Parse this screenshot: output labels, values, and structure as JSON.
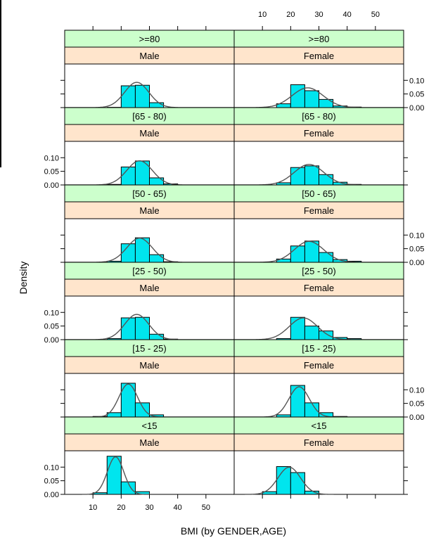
{
  "chart_data": {
    "type": "bar",
    "xlabel": "BMI (by GENDER,AGE)",
    "ylabel": "Density",
    "xlim": [
      0,
      60
    ],
    "ylim": [
      0,
      0.16
    ],
    "x_ticks": [
      10,
      20,
      30,
      40,
      50
    ],
    "x_tick_labels": [
      "10",
      "20",
      "30",
      "40",
      "50"
    ],
    "y_ticks": [
      0,
      0.05,
      0.1
    ],
    "y_tick_labels": [
      "0.00",
      "0.05",
      "0.10"
    ],
    "bin_edges": [
      5,
      10,
      15,
      20,
      25,
      30,
      35,
      40,
      45,
      50,
      55
    ],
    "colors": {
      "bar_fill": "#00e5ee",
      "bar_stroke": "#000000",
      "curve": "#555555",
      "age_strip": "#ccffcc",
      "gender_strip": "#ffe5cc"
    },
    "columns": [
      "Male",
      "Female"
    ],
    "rows": [
      ">=80",
      "[65 - 80)",
      "[50 - 65)",
      "[25 - 50)",
      "[15 - 25)",
      "<15"
    ],
    "panels": [
      [
        {
          "age": ">=80",
          "gender": "Male",
          "density": [
            0,
            0,
            0.001,
            0.08,
            0.082,
            0.018,
            0,
            0,
            0,
            0
          ],
          "curve": {
            "mean": 25.5,
            "sd": 4.3
          }
        },
        {
          "age": ">=80",
          "gender": "Female",
          "density": [
            0,
            0,
            0.014,
            0.084,
            0.062,
            0.03,
            0.006,
            0.002,
            0,
            0
          ],
          "curve": {
            "mean": 26.0,
            "sd": 5.5
          }
        }
      ],
      [
        {
          "age": "[65 - 80)",
          "gender": "Male",
          "density": [
            0,
            0,
            0.002,
            0.066,
            0.088,
            0.026,
            0.004,
            0,
            0,
            0
          ],
          "curve": {
            "mean": 26.5,
            "sd": 4.5
          }
        },
        {
          "age": "[65 - 80)",
          "gender": "Female",
          "density": [
            0,
            0,
            0.008,
            0.064,
            0.07,
            0.038,
            0.01,
            0.002,
            0,
            0
          ],
          "curve": {
            "mean": 26.5,
            "sd": 5.3
          }
        }
      ],
      [
        {
          "age": "[50 - 65)",
          "gender": "Male",
          "density": [
            0,
            0,
            0.004,
            0.068,
            0.09,
            0.028,
            0.002,
            0,
            0,
            0
          ],
          "curve": {
            "mean": 26.5,
            "sd": 4.5
          }
        },
        {
          "age": "[50 - 65)",
          "gender": "Female",
          "density": [
            0,
            0,
            0.012,
            0.06,
            0.078,
            0.036,
            0.01,
            0.004,
            0,
            0
          ],
          "curve": {
            "mean": 26.5,
            "sd": 5.2
          }
        }
      ],
      [
        {
          "age": "[25 - 50)",
          "gender": "Male",
          "density": [
            0,
            0,
            0.004,
            0.08,
            0.082,
            0.02,
            0.002,
            0,
            0,
            0
          ],
          "curve": {
            "mean": 25.5,
            "sd": 4.3
          }
        },
        {
          "age": "[25 - 50)",
          "gender": "Female",
          "density": [
            0,
            0,
            0.004,
            0.082,
            0.05,
            0.032,
            0.008,
            0.004,
            0,
            0
          ],
          "curve": {
            "mean": 24.5,
            "sd": 5.0
          }
        }
      ],
      [
        {
          "age": "[15 - 25)",
          "gender": "Male",
          "density": [
            0,
            0.002,
            0.016,
            0.124,
            0.052,
            0.008,
            0,
            0,
            0,
            0
          ],
          "curve": {
            "mean": 22.5,
            "sd": 3.3
          }
        },
        {
          "age": "[15 - 25)",
          "gender": "Female",
          "density": [
            0,
            0,
            0.008,
            0.116,
            0.052,
            0.016,
            0.002,
            0,
            0,
            0
          ],
          "curve": {
            "mean": 23.0,
            "sd": 3.6
          }
        }
      ],
      [
        {
          "age": "<15",
          "gender": "Male",
          "density": [
            0,
            0.006,
            0.14,
            0.046,
            0.01,
            0,
            0,
            0,
            0,
            0
          ],
          "curve": {
            "mean": 18.0,
            "sd": 2.9
          }
        },
        {
          "age": "<15",
          "gender": "Female",
          "density": [
            0,
            0.01,
            0.102,
            0.08,
            0.012,
            0,
            0,
            0,
            0,
            0
          ],
          "curve": {
            "mean": 19.5,
            "sd": 4.0
          }
        }
      ]
    ]
  }
}
